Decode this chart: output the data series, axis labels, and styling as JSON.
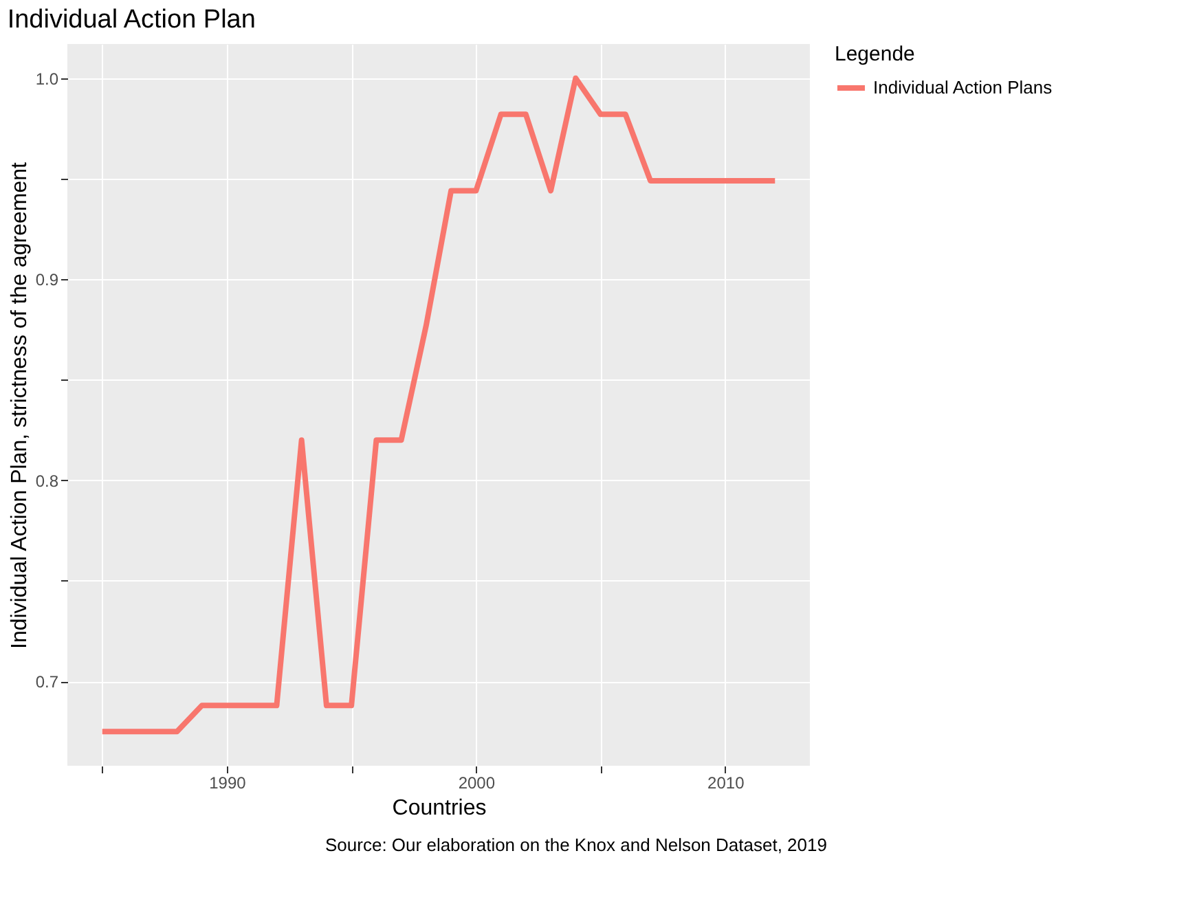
{
  "chart_data": {
    "type": "line",
    "title": "Individual Action Plan",
    "xlabel": "Countries",
    "ylabel": "Individual Action Plan, strictness of the agreement",
    "legend_title": "Legende",
    "x": [
      1985,
      1986,
      1987,
      1988,
      1989,
      1990,
      1991,
      1992,
      1993,
      1994,
      1995,
      1996,
      1997,
      1998,
      1999,
      2000,
      2001,
      2002,
      2003,
      2004,
      2005,
      2006,
      2007,
      2008,
      2009,
      2010,
      2011,
      2012
    ],
    "series": [
      {
        "name": "Individual Action Plans",
        "color": "#f8766d",
        "values": [
          0.675,
          0.675,
          0.675,
          0.675,
          0.688,
          0.688,
          0.688,
          0.688,
          0.82,
          0.688,
          0.688,
          0.82,
          0.82,
          0.877,
          0.944,
          0.944,
          0.982,
          0.982,
          0.944,
          1.0,
          0.982,
          0.982,
          0.949,
          0.949,
          0.949,
          0.949,
          0.949,
          0.949
        ]
      }
    ],
    "xlim": [
      1983.6,
      2013.4
    ],
    "ylim": [
      0.658,
      1.017
    ],
    "xticks": [
      {
        "value": 1985,
        "label": null
      },
      1990,
      {
        "value": 1995,
        "label": null
      },
      2000,
      {
        "value": 2005,
        "label": null
      },
      2010
    ],
    "yticks": [
      0.7,
      {
        "value": 0.75,
        "label": null
      },
      0.8,
      {
        "value": 0.85,
        "label": null
      },
      0.9,
      {
        "value": 0.95,
        "label": null
      },
      {
        "value": 1.0,
        "label": "1.0"
      }
    ],
    "grid": true,
    "legend": "right",
    "line_style": "solid",
    "marker": "none",
    "annotations": [
      "Source: Our elaboration on the Knox and Nelson Dataset, 2019"
    ]
  }
}
